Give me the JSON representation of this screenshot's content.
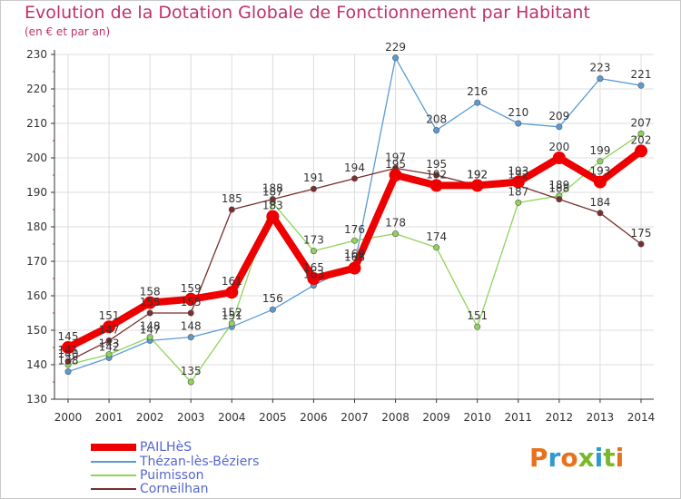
{
  "header": {
    "title": "Evolution de la Dotation Globale de Fonctionnement par Habitant",
    "subtitle": "(en € et par an)"
  },
  "logo": {
    "text": "Proxiti",
    "colors": [
      "#e8711f",
      "#2e9ad0",
      "#e8711f",
      "#79b829",
      "#2e9ad0",
      "#79b829",
      "#e8711f"
    ]
  },
  "chart_data": {
    "type": "line",
    "title": "Evolution de la Dotation Globale de Fonctionnement par Habitant",
    "subtitle": "(en € et par an)",
    "x": [
      "2000",
      "2001",
      "2002",
      "2003",
      "2004",
      "2005",
      "2006",
      "2007",
      "2008",
      "2009",
      "2010",
      "2011",
      "2012",
      "2013",
      "2014"
    ],
    "ylim": [
      130,
      230
    ],
    "yticks": [
      130,
      140,
      150,
      160,
      170,
      180,
      190,
      200,
      210,
      220,
      230
    ],
    "grid": true,
    "legend_position": "bottom-left",
    "series": [
      {
        "name": "PAILHèS",
        "color": "#ee0000",
        "values": [
          145,
          151,
          158,
          159,
          161,
          183,
          165,
          168,
          195,
          192,
          192,
          193,
          200,
          193,
          202
        ],
        "labels": [
          "145",
          "151",
          "158",
          "159",
          "161",
          "183",
          "165",
          "168",
          "195",
          "192",
          "192",
          "193",
          "200",
          "193",
          "202"
        ]
      },
      {
        "name": "Thézan-lès-Béziers",
        "color": "#5a9bd4",
        "values": [
          138,
          142,
          147,
          148,
          151,
          156,
          163,
          169,
          229,
          208,
          216,
          210,
          209,
          223,
          221
        ],
        "labels": [
          "138",
          "142",
          "147",
          "148",
          "151",
          "156",
          "163",
          "169",
          "229",
          "208",
          "216",
          "210",
          "209",
          "223",
          "221"
        ]
      },
      {
        "name": "Puimisson",
        "color": "#8fd45a",
        "values": [
          140,
          143,
          148,
          135,
          152,
          187,
          173,
          176,
          178,
          174,
          151,
          187,
          189,
          199,
          207
        ],
        "labels": [
          "140",
          "143",
          "148",
          "135",
          "152",
          "187",
          "173",
          "176",
          "178",
          "174",
          "151",
          "187",
          "189",
          "199",
          "207"
        ]
      },
      {
        "name": "Corneilhan",
        "color": "#7a2e2e",
        "values": [
          141,
          147,
          155,
          155,
          185,
          188,
          191,
          194,
          197,
          195,
          192,
          192,
          188,
          184,
          175
        ],
        "labels": [
          "141",
          "147",
          "155",
          "155",
          "185",
          "188",
          "191",
          "194",
          "197",
          "195",
          "192",
          "192",
          "188",
          "184",
          "175"
        ]
      }
    ]
  }
}
